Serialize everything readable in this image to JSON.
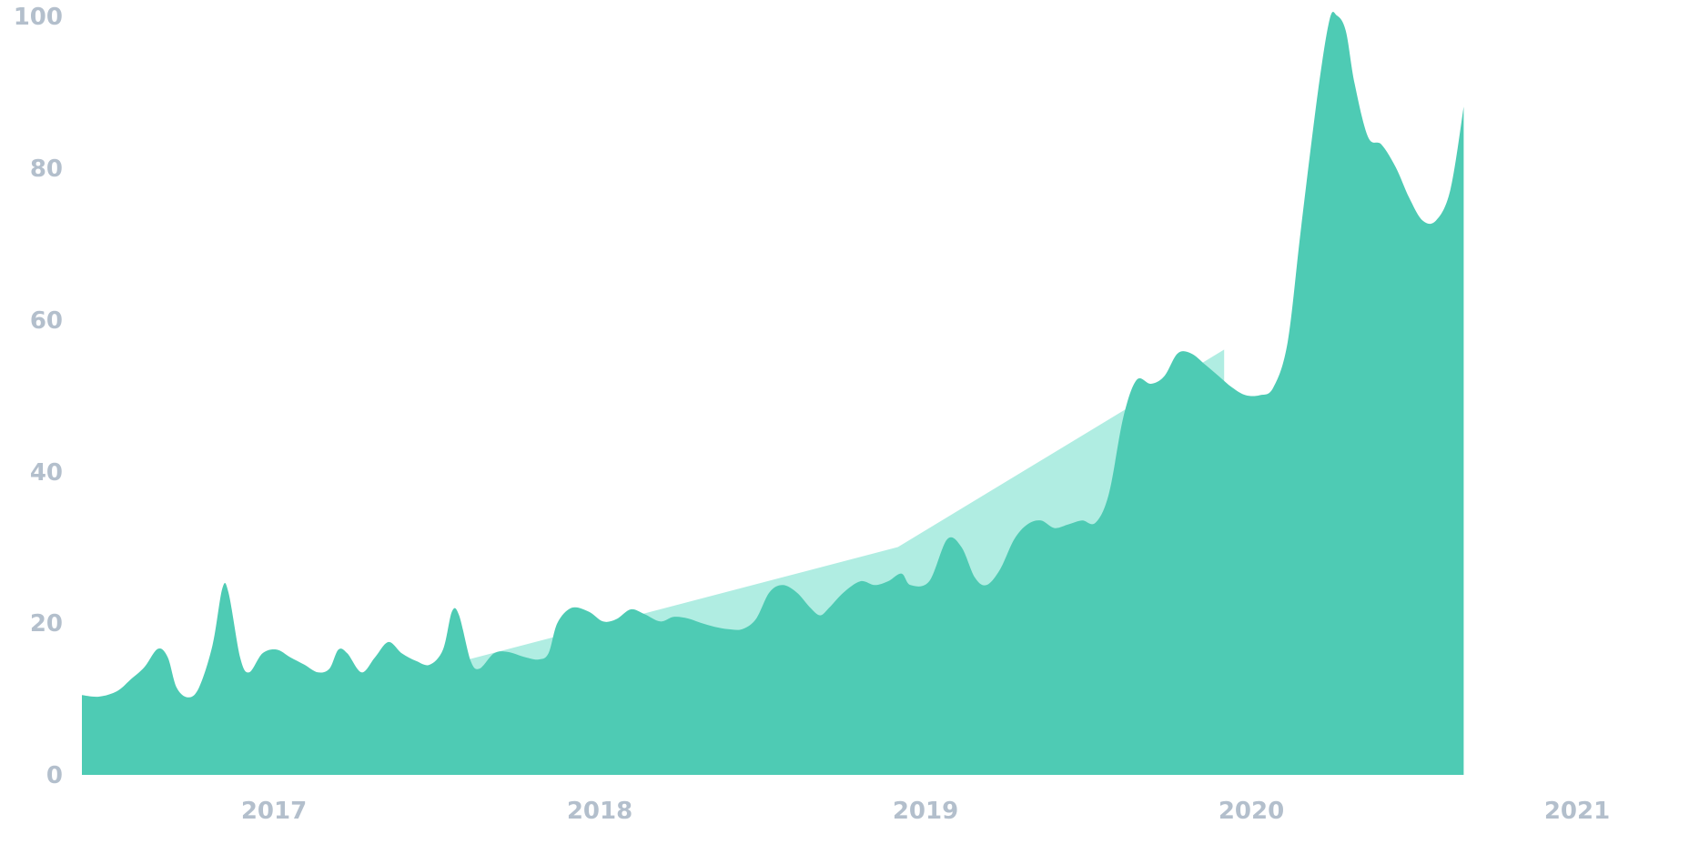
{
  "chart_data": {
    "type": "area",
    "title": "",
    "xlabel": "",
    "ylabel": "",
    "ylim": [
      0,
      100
    ],
    "yticks": [
      0,
      20,
      40,
      60,
      80,
      100
    ],
    "ytick_labels": [
      "0",
      "20",
      "40",
      "60",
      "80",
      "100"
    ],
    "xtick_labels": [
      "2017",
      "2018",
      "2019",
      "2020",
      "2021"
    ],
    "xlim": [
      "2016-06",
      "2021-05"
    ],
    "grid": false,
    "legend": "none",
    "colors": {
      "series": "#4ecbb4",
      "trend": "#b0ede2",
      "tick_label": "#b3bfcc"
    },
    "series": [
      {
        "values": [
          [
            "2016-06-01",
            10.5
          ],
          [
            "2016-06-20",
            10.3
          ],
          [
            "2016-07-10",
            11.0
          ],
          [
            "2016-07-25",
            12.5
          ],
          [
            "2016-08-10",
            14.2
          ],
          [
            "2016-08-25",
            16.6
          ],
          [
            "2016-09-05",
            15.5
          ],
          [
            "2016-09-15",
            11.5
          ],
          [
            "2016-09-28",
            10.2
          ],
          [
            "2016-10-10",
            11.5
          ],
          [
            "2016-10-25",
            17.0
          ],
          [
            "2016-11-05",
            24.5
          ],
          [
            "2016-11-12",
            24.0
          ],
          [
            "2016-11-25",
            15.5
          ],
          [
            "2016-12-05",
            13.5
          ],
          [
            "2016-12-20",
            16.0
          ],
          [
            "2017-01-05",
            16.5
          ],
          [
            "2017-01-20",
            15.5
          ],
          [
            "2017-02-05",
            14.5
          ],
          [
            "2017-02-20",
            13.5
          ],
          [
            "2017-03-05",
            14.0
          ],
          [
            "2017-03-15",
            16.5
          ],
          [
            "2017-03-25",
            16.0
          ],
          [
            "2017-04-10",
            13.5
          ],
          [
            "2017-04-25",
            15.5
          ],
          [
            "2017-05-10",
            17.5
          ],
          [
            "2017-05-25",
            16.0
          ],
          [
            "2017-06-10",
            15.0
          ],
          [
            "2017-06-25",
            14.5
          ],
          [
            "2017-07-10",
            16.5
          ],
          [
            "2017-07-20",
            21.5
          ],
          [
            "2017-07-28",
            21.0
          ],
          [
            "2017-08-10",
            15.0
          ],
          [
            "2017-08-20",
            14.0
          ],
          [
            "2017-09-05",
            16.0
          ],
          [
            "2017-09-20",
            16.2
          ],
          [
            "2017-10-10",
            15.5
          ],
          [
            "2017-10-25",
            15.2
          ],
          [
            "2017-11-05",
            16.0
          ],
          [
            "2017-11-15",
            20.0
          ],
          [
            "2017-12-01",
            22.0
          ],
          [
            "2017-12-20",
            21.5
          ],
          [
            "2018-01-05",
            20.2
          ],
          [
            "2018-01-20",
            20.5
          ],
          [
            "2018-02-05",
            21.8
          ],
          [
            "2018-02-20",
            21.2
          ],
          [
            "2018-03-10",
            20.2
          ],
          [
            "2018-03-25",
            20.8
          ],
          [
            "2018-04-10",
            20.6
          ],
          [
            "2018-04-25",
            20.0
          ],
          [
            "2018-05-10",
            19.5
          ],
          [
            "2018-05-25",
            19.2
          ],
          [
            "2018-06-10",
            19.2
          ],
          [
            "2018-06-25",
            20.5
          ],
          [
            "2018-07-10",
            24.0
          ],
          [
            "2018-07-25",
            25.0
          ],
          [
            "2018-08-10",
            24.0
          ],
          [
            "2018-08-25",
            22.0
          ],
          [
            "2018-09-05",
            21.0
          ],
          [
            "2018-09-15",
            22.0
          ],
          [
            "2018-10-01",
            24.0
          ],
          [
            "2018-10-20",
            25.5
          ],
          [
            "2018-11-05",
            25.0
          ],
          [
            "2018-11-20",
            25.5
          ],
          [
            "2018-12-05",
            26.5
          ],
          [
            "2018-12-15",
            25.0
          ],
          [
            "2019-01-05",
            25.5
          ],
          [
            "2019-01-25",
            31.0
          ],
          [
            "2019-02-10",
            30.0
          ],
          [
            "2019-02-25",
            26.0
          ],
          [
            "2019-03-10",
            25.0
          ],
          [
            "2019-03-25",
            27.0
          ],
          [
            "2019-04-10",
            31.0
          ],
          [
            "2019-04-25",
            33.0
          ],
          [
            "2019-05-10",
            33.5
          ],
          [
            "2019-05-25",
            32.5
          ],
          [
            "2019-06-10",
            33.0
          ],
          [
            "2019-06-25",
            33.5
          ],
          [
            "2019-07-10",
            33.2
          ],
          [
            "2019-07-25",
            37.0
          ],
          [
            "2019-08-10",
            47.0
          ],
          [
            "2019-08-25",
            52.0
          ],
          [
            "2019-09-10",
            51.5
          ],
          [
            "2019-09-25",
            52.5
          ],
          [
            "2019-10-10",
            55.5
          ],
          [
            "2019-10-25",
            55.5
          ],
          [
            "2019-11-10",
            54.0
          ],
          [
            "2019-11-25",
            52.5
          ],
          [
            "2019-12-10",
            51.0
          ],
          [
            "2019-12-25",
            50.0
          ],
          [
            "2020-01-10",
            50.0
          ],
          [
            "2020-01-25",
            51.0
          ],
          [
            "2020-02-10",
            57.0
          ],
          [
            "2020-02-25",
            72.0
          ],
          [
            "2020-03-15",
            90.0
          ],
          [
            "2020-03-28",
            99.5
          ],
          [
            "2020-04-05",
            100.0
          ],
          [
            "2020-04-15",
            98.0
          ],
          [
            "2020-04-25",
            91.0
          ],
          [
            "2020-05-10",
            84.0
          ],
          [
            "2020-05-25",
            83.0
          ],
          [
            "2020-06-10",
            80.0
          ],
          [
            "2020-06-25",
            76.0
          ],
          [
            "2020-07-10",
            73.0
          ],
          [
            "2020-07-25",
            73.0
          ],
          [
            "2020-08-10",
            77.0
          ],
          [
            "2020-08-25",
            88.0
          ]
        ]
      }
    ],
    "trend_area": {
      "values": [
        [
          "2017-08-01",
          15.0
        ],
        [
          "2018-12-01",
          30.0
        ],
        [
          "2019-12-01",
          56.0
        ]
      ]
    }
  }
}
